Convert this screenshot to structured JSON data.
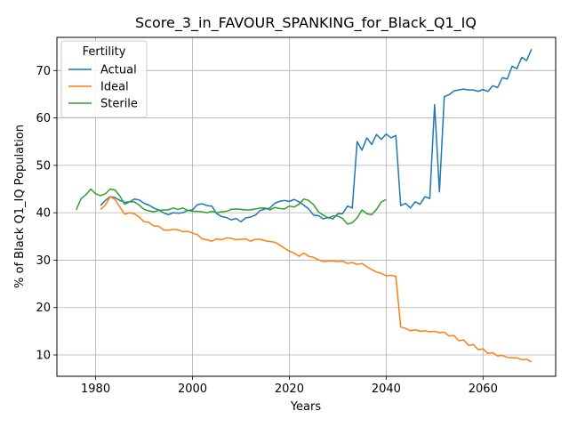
{
  "chart_data": {
    "type": "line",
    "title": "Score_3_in_FAVOUR_SPANKING_for_Black_Q1_IQ",
    "xlabel": "Years",
    "ylabel": "% of Black Q1_IQ Population",
    "xlim": [
      1972,
      2075
    ],
    "ylim": [
      5.5,
      77
    ],
    "xticks": [
      1980,
      2000,
      2020,
      2040,
      2060
    ],
    "yticks": [
      10,
      20,
      30,
      40,
      50,
      60,
      70
    ],
    "grid": true,
    "legend": {
      "title": "Fertility",
      "placement": "top-left"
    },
    "series": [
      {
        "name": "Actual",
        "color": "#1f77b4",
        "x": [
          1981,
          1982,
          1983,
          1984,
          1985,
          1986,
          1987,
          1988,
          1989,
          1990,
          1991,
          1992,
          1993,
          1994,
          1995,
          1996,
          1997,
          1998,
          1999,
          2000,
          2001,
          2002,
          2003,
          2004,
          2005,
          2006,
          2007,
          2008,
          2009,
          2010,
          2011,
          2012,
          2013,
          2014,
          2015,
          2016,
          2017,
          2018,
          2019,
          2020,
          2021,
          2022,
          2023,
          2024,
          2025,
          2026,
          2027,
          2028,
          2029,
          2030,
          2031,
          2032,
          2033,
          2034,
          2035,
          2036,
          2037,
          2038,
          2039,
          2040,
          2041,
          2042,
          2043,
          2044,
          2045,
          2046,
          2047,
          2048,
          2049,
          2050,
          2051,
          2052,
          2053,
          2054,
          2055,
          2056,
          2057,
          2058,
          2059,
          2060,
          2061,
          2062,
          2063,
          2064,
          2065,
          2066,
          2067,
          2068,
          2069,
          2070
        ],
        "y": [
          41.5,
          42.6,
          43.4,
          43.2,
          42.6,
          42.2,
          42.3,
          42.9,
          42.7,
          42.0,
          41.6,
          41.0,
          40.6,
          40.0,
          39.6,
          40.0,
          39.9,
          40.0,
          40.5,
          40.6,
          41.7,
          41.9,
          41.5,
          41.4,
          39.8,
          39.2,
          39.0,
          38.5,
          38.8,
          38.1,
          38.9,
          39.1,
          39.5,
          40.5,
          40.8,
          41.0,
          42.0,
          42.4,
          42.6,
          42.4,
          42.8,
          42.3,
          41.6,
          40.8,
          39.5,
          39.4,
          38.7,
          39.0,
          38.7,
          39.8,
          39.8,
          41.4,
          41.0,
          55.0,
          53.2,
          55.8,
          54.4,
          56.5,
          55.5,
          56.6,
          55.8,
          56.3,
          41.5,
          42.0,
          41.0,
          42.3,
          41.8,
          43.4,
          43.0,
          62.8,
          44.4,
          64.5,
          64.9,
          65.7,
          65.9,
          66.1,
          65.9,
          65.9,
          65.6,
          66.0,
          65.6,
          66.8,
          66.4,
          68.5,
          68.2,
          70.9,
          70.4,
          72.8,
          72.1,
          74.5
        ]
      },
      {
        "name": "Ideal",
        "color": "#ff7f0e",
        "x": [
          1981,
          1982,
          1983,
          1984,
          1985,
          1986,
          1987,
          1988,
          1989,
          1990,
          1991,
          1992,
          1993,
          1994,
          1995,
          1996,
          1997,
          1998,
          1999,
          2000,
          2001,
          2002,
          2003,
          2004,
          2005,
          2006,
          2007,
          2008,
          2009,
          2010,
          2011,
          2012,
          2013,
          2014,
          2015,
          2016,
          2017,
          2018,
          2019,
          2020,
          2021,
          2022,
          2023,
          2024,
          2025,
          2026,
          2027,
          2028,
          2029,
          2030,
          2031,
          2032,
          2033,
          2034,
          2035,
          2036,
          2037,
          2038,
          2039,
          2040,
          2041,
          2042,
          2043,
          2044,
          2045,
          2046,
          2047,
          2048,
          2049,
          2050,
          2051,
          2052,
          2053,
          2054,
          2055,
          2056,
          2057,
          2058,
          2059,
          2060,
          2061,
          2062,
          2063,
          2064,
          2065,
          2066,
          2067,
          2068,
          2069,
          2070
        ],
        "y": [
          40.7,
          41.6,
          43.4,
          42.8,
          41.2,
          39.7,
          40.0,
          39.8,
          39.1,
          38.1,
          38.0,
          37.2,
          37.2,
          36.4,
          36.3,
          36.5,
          36.4,
          36.0,
          36.1,
          35.7,
          35.4,
          34.5,
          34.3,
          34.0,
          34.5,
          34.3,
          34.7,
          34.6,
          34.3,
          34.4,
          34.5,
          34.0,
          34.4,
          34.4,
          34.1,
          33.9,
          33.8,
          33.2,
          32.5,
          31.9,
          31.5,
          30.8,
          31.5,
          30.8,
          30.6,
          30.1,
          29.7,
          29.8,
          29.8,
          29.7,
          29.8,
          29.3,
          29.5,
          29.1,
          29.3,
          28.6,
          28.0,
          27.5,
          27.2,
          26.7,
          26.8,
          26.6,
          15.9,
          15.6,
          15.1,
          15.3,
          15.0,
          15.1,
          14.9,
          15.0,
          14.7,
          14.8,
          14.0,
          14.1,
          13.0,
          13.2,
          12.0,
          12.2,
          11.1,
          11.3,
          10.3,
          10.5,
          9.8,
          9.9,
          9.5,
          9.4,
          9.4,
          9.0,
          9.1,
          8.5
        ]
      },
      {
        "name": "Sterile",
        "color": "#2ca02c",
        "x": [
          1976,
          1977,
          1978,
          1979,
          1980,
          1981,
          1982,
          1983,
          1984,
          1985,
          1986,
          1987,
          1988,
          1989,
          1990,
          1991,
          1992,
          1993,
          1994,
          1995,
          1996,
          1997,
          1998,
          1999,
          2000,
          2001,
          2002,
          2003,
          2004,
          2005,
          2006,
          2007,
          2008,
          2009,
          2010,
          2011,
          2012,
          2013,
          2014,
          2015,
          2016,
          2017,
          2018,
          2019,
          2020,
          2021,
          2022,
          2023,
          2024,
          2025,
          2026,
          2027,
          2028,
          2029,
          2030,
          2031,
          2032,
          2033,
          2034,
          2035,
          2036,
          2037,
          2038,
          2039,
          2040
        ],
        "y": [
          40.6,
          43.0,
          43.8,
          45.0,
          44.0,
          43.6,
          44.0,
          45.0,
          44.8,
          43.5,
          41.8,
          42.3,
          42.3,
          41.6,
          40.7,
          40.4,
          40.2,
          40.5,
          40.6,
          40.6,
          41.0,
          40.7,
          41.0,
          40.5,
          40.3,
          40.3,
          40.2,
          40.0,
          40.3,
          40.0,
          40.2,
          40.3,
          40.7,
          40.8,
          40.7,
          40.6,
          40.6,
          40.8,
          41.0,
          41.0,
          40.6,
          41.1,
          40.9,
          40.8,
          41.4,
          41.2,
          41.8,
          42.9,
          42.6,
          41.7,
          40.2,
          39.5,
          38.9,
          39.3,
          39.3,
          38.8,
          37.6,
          37.9,
          38.9,
          40.6,
          39.8,
          39.6,
          40.7,
          42.3,
          42.8
        ]
      }
    ]
  }
}
